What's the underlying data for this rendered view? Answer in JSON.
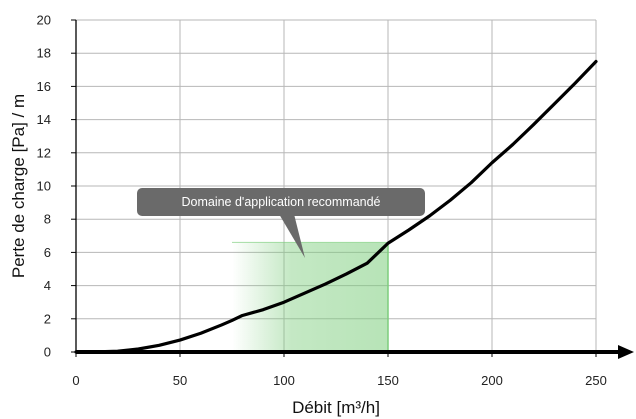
{
  "chart_data": {
    "type": "line",
    "title": "",
    "xlabel": "Débit [m³/h]",
    "ylabel": "Perte de charge [Pa] / m",
    "xlim": [
      0,
      250
    ],
    "ylim": [
      0,
      20
    ],
    "x_ticks": [
      0,
      50,
      100,
      150,
      200,
      250
    ],
    "y_ticks": [
      0,
      2,
      4,
      6,
      8,
      10,
      12,
      14,
      16,
      18,
      20
    ],
    "grid": true,
    "legend": "none",
    "series": [
      {
        "x": [
          0,
          10,
          20,
          30,
          40,
          50,
          60,
          70,
          75,
          80,
          90,
          100,
          110,
          120,
          130,
          140,
          150,
          160,
          170,
          180,
          190,
          200,
          210,
          220,
          230,
          240,
          250
        ],
        "y": [
          0,
          0.01,
          0.05,
          0.18,
          0.4,
          0.72,
          1.13,
          1.63,
          1.9,
          2.2,
          2.55,
          3.0,
          3.55,
          4.1,
          4.7,
          5.35,
          6.55,
          7.35,
          8.2,
          9.15,
          10.2,
          11.4,
          12.5,
          13.7,
          14.95,
          16.2,
          17.5
        ],
        "color": "#000000"
      }
    ],
    "recommended_range": {
      "label": "Domaine d'application recommandé",
      "x_from": 75,
      "x_to": 150,
      "y_from": 0,
      "y_to": 6.6,
      "color": "#7ccd7c"
    },
    "colors": {
      "grid": "#b7b7b7",
      "axis": "#000000",
      "callout": "#6a6a6a"
    }
  }
}
